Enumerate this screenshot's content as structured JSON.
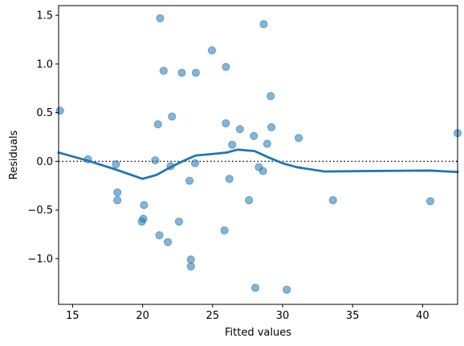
{
  "chart_data": {
    "type": "scatter",
    "title": "",
    "xlabel": "Fitted values",
    "ylabel": "Residuals",
    "xlim": [
      14.0,
      42.5
    ],
    "ylim": [
      -1.47,
      1.6
    ],
    "xticks": [
      15,
      20,
      25,
      30,
      35,
      40
    ],
    "yticks": [
      -1.0,
      -0.5,
      0.0,
      0.5,
      1.0,
      1.5
    ],
    "xtick_labels": [
      "15",
      "20",
      "25",
      "30",
      "35",
      "40"
    ],
    "ytick_labels": [
      "−1.0",
      "−0.5",
      "0.0",
      "0.5",
      "1.0",
      "1.5"
    ],
    "grid": false,
    "reference_line": {
      "y": 0,
      "style": "dotted",
      "color": "#000000"
    },
    "colors": {
      "points": "#1f77b4",
      "smooth_line": "#1f77b4"
    },
    "points": [
      {
        "x": 14.1,
        "y": 0.52
      },
      {
        "x": 16.1,
        "y": 0.02
      },
      {
        "x": 18.1,
        "y": -0.03
      },
      {
        "x": 18.2,
        "y": -0.32
      },
      {
        "x": 18.2,
        "y": -0.4
      },
      {
        "x": 19.95,
        "y": -0.62
      },
      {
        "x": 20.05,
        "y": -0.59
      },
      {
        "x": 20.1,
        "y": -0.45
      },
      {
        "x": 20.9,
        "y": 0.01
      },
      {
        "x": 21.1,
        "y": 0.38
      },
      {
        "x": 21.2,
        "y": -0.76
      },
      {
        "x": 21.25,
        "y": 1.47
      },
      {
        "x": 21.5,
        "y": 0.93
      },
      {
        "x": 21.8,
        "y": -0.83
      },
      {
        "x": 22.0,
        "y": -0.05
      },
      {
        "x": 22.1,
        "y": 0.46
      },
      {
        "x": 22.6,
        "y": -0.62
      },
      {
        "x": 22.8,
        "y": 0.91
      },
      {
        "x": 23.35,
        "y": -0.2
      },
      {
        "x": 23.45,
        "y": -1.01
      },
      {
        "x": 23.45,
        "y": -1.08
      },
      {
        "x": 23.75,
        "y": -0.02
      },
      {
        "x": 23.8,
        "y": 0.91
      },
      {
        "x": 24.95,
        "y": 1.14
      },
      {
        "x": 25.85,
        "y": -0.71
      },
      {
        "x": 25.95,
        "y": 0.97
      },
      {
        "x": 25.95,
        "y": 0.39
      },
      {
        "x": 26.2,
        "y": -0.18
      },
      {
        "x": 26.4,
        "y": 0.17
      },
      {
        "x": 26.95,
        "y": 0.33
      },
      {
        "x": 27.6,
        "y": -0.4
      },
      {
        "x": 27.95,
        "y": 0.26
      },
      {
        "x": 28.05,
        "y": -1.3
      },
      {
        "x": 28.3,
        "y": -0.06
      },
      {
        "x": 28.6,
        "y": -0.1
      },
      {
        "x": 28.65,
        "y": 1.41
      },
      {
        "x": 28.9,
        "y": 0.18
      },
      {
        "x": 29.15,
        "y": 0.67
      },
      {
        "x": 29.2,
        "y": 0.35
      },
      {
        "x": 30.3,
        "y": -1.32
      },
      {
        "x": 31.15,
        "y": 0.24
      },
      {
        "x": 33.6,
        "y": -0.4
      },
      {
        "x": 40.55,
        "y": -0.41
      },
      {
        "x": 42.5,
        "y": 0.29
      }
    ],
    "smooth_line": [
      {
        "x": 14.0,
        "y": 0.09
      },
      {
        "x": 16.0,
        "y": 0.01
      },
      {
        "x": 18.0,
        "y": -0.08
      },
      {
        "x": 20.0,
        "y": -0.18
      },
      {
        "x": 21.0,
        "y": -0.14
      },
      {
        "x": 22.0,
        "y": -0.06
      },
      {
        "x": 23.0,
        "y": 0.01
      },
      {
        "x": 23.8,
        "y": 0.06
      },
      {
        "x": 25.0,
        "y": 0.075
      },
      {
        "x": 26.0,
        "y": 0.09
      },
      {
        "x": 26.8,
        "y": 0.12
      },
      {
        "x": 28.0,
        "y": 0.105
      },
      {
        "x": 29.0,
        "y": 0.04
      },
      {
        "x": 30.0,
        "y": -0.02
      },
      {
        "x": 31.0,
        "y": -0.06
      },
      {
        "x": 33.0,
        "y": -0.105
      },
      {
        "x": 36.0,
        "y": -0.1
      },
      {
        "x": 40.5,
        "y": -0.095
      },
      {
        "x": 42.5,
        "y": -0.11
      }
    ]
  }
}
